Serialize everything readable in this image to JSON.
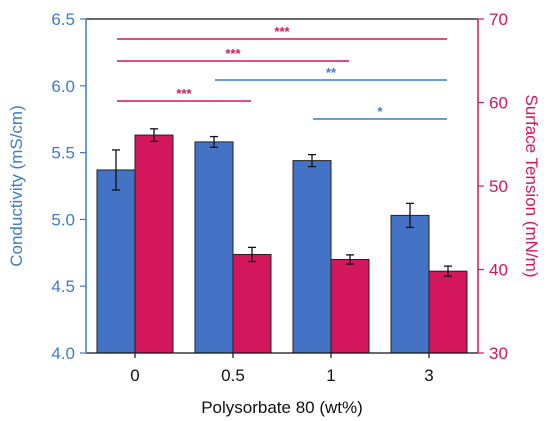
{
  "chart_data": {
    "type": "bar",
    "categories": [
      "0",
      "0.5",
      "1",
      "3"
    ],
    "xlabel": "Polysorbate 80 (wt%)",
    "series": [
      {
        "name": "Conductivity (mS/cm)",
        "axis": "left",
        "color": "#4472c4",
        "values": [
          5.37,
          5.58,
          5.44,
          5.03
        ],
        "errors": [
          0.15,
          0.04,
          0.045,
          0.09
        ]
      },
      {
        "name": "Surface Tension (mN/m)",
        "axis": "right",
        "color": "#d4175c",
        "values": [
          56.1,
          41.8,
          41.2,
          39.8
        ],
        "errors": [
          0.75,
          0.85,
          0.55,
          0.6
        ]
      }
    ],
    "left_axis": {
      "label": "Conductivity (mS/cm)",
      "color": "#3d7cc9",
      "min": 4.0,
      "max": 6.5,
      "ticks": [
        "4.0",
        "4.5",
        "5.0",
        "5.5",
        "6.0",
        "6.5"
      ]
    },
    "right_axis": {
      "label": "Surface Tension (mN/m)",
      "color": "#d4175c",
      "min": 30,
      "max": 70,
      "ticks": [
        "30",
        "40",
        "50",
        "60",
        "70"
      ]
    },
    "significance": [
      {
        "from": "0",
        "to": "3",
        "label": "***",
        "color": "#d4175c"
      },
      {
        "from": "0",
        "to": "1",
        "label": "***",
        "color": "#d4175c"
      },
      {
        "from": "0.5",
        "to": "3",
        "label": "**",
        "color": "#3d7cc9"
      },
      {
        "from": "0",
        "to": "0.5",
        "label": "***",
        "color": "#d4175c"
      },
      {
        "from": "1",
        "to": "3",
        "label": "*",
        "color": "#3d7cc9"
      }
    ],
    "grid": false,
    "legend": "none"
  }
}
